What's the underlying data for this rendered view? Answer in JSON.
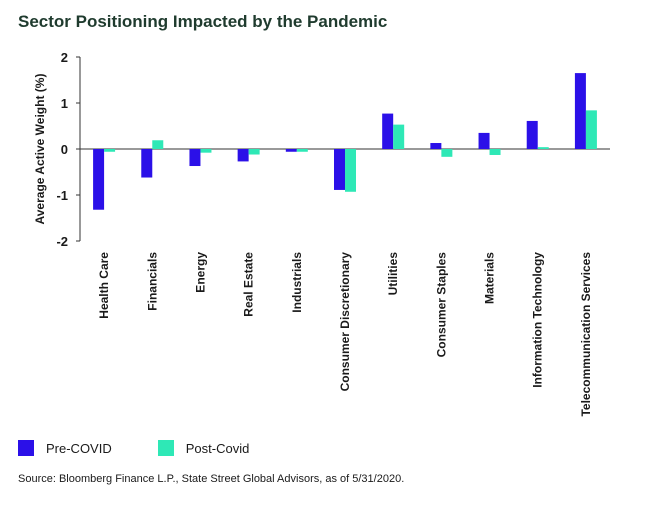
{
  "title": "Sector Positioning Impacted by the Pandemic",
  "source": "Source: Bloomberg Finance L.P., State Street Global Advisors, as of 5/31/2020.",
  "chart_data": {
    "type": "bar",
    "ylabel": "Average Active Weight (%)",
    "ylim": [
      -2,
      2
    ],
    "yticks": [
      2,
      1,
      0,
      -1,
      -2
    ],
    "grid": false,
    "legend_position": "bottom-left",
    "categories": [
      "Health Care",
      "Financials",
      "Energy",
      "Real Estate",
      "Industrials",
      "Consumer Discretionary",
      "Utilities",
      "Consumer Staples",
      "Materials",
      "Information Technology",
      "Telecommunication Services"
    ],
    "series": [
      {
        "name": "Pre-COVID",
        "color": "#2b10e8",
        "values": [
          -1.32,
          -0.62,
          -0.37,
          -0.27,
          -0.06,
          -0.89,
          0.77,
          0.13,
          0.35,
          0.61,
          1.65
        ]
      },
      {
        "name": "Post-Covid",
        "color": "#2ee8b6",
        "values": [
          -0.06,
          0.19,
          -0.08,
          -0.12,
          -0.06,
          -0.93,
          0.53,
          -0.17,
          -0.13,
          0.04,
          0.84
        ]
      }
    ]
  }
}
